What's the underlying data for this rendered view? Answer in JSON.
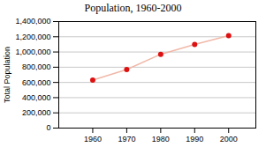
{
  "chart_data": {
    "type": "line",
    "title": "Population, 1960-2000",
    "ylabel": "Total Population",
    "x": [
      1960,
      1970,
      1980,
      1990,
      2000
    ],
    "values": [
      630000,
      770000,
      970000,
      1100000,
      1215000
    ],
    "color": "#f0b8a8",
    "colors": [
      "#dd1111",
      "#dd1111",
      "#dd1111",
      "#dd1111",
      "#dd1111"
    ],
    "marker": "circle",
    "xlim": [
      1950,
      2008
    ],
    "xticks": [
      1960,
      1970,
      1980,
      1990,
      2000
    ],
    "ylim": [
      0,
      1400000
    ],
    "yticks": [
      0,
      {
        "value": 200000,
        "label": "200,000"
      },
      {
        "value": 400000,
        "label": "400,000"
      },
      {
        "value": 600000,
        "label": "600,000"
      },
      {
        "value": 800000,
        "label": "800,000"
      },
      {
        "value": 1000000,
        "label": "1,000,000"
      },
      {
        "value": 1200000,
        "label": "1,200,000"
      },
      {
        "value": 1400000,
        "label": "1,400,000"
      }
    ],
    "grid": "y"
  }
}
